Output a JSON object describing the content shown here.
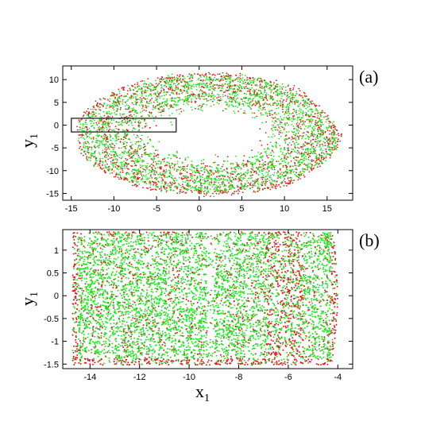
{
  "chart_data": [
    {
      "type": "scatter",
      "panel_label": "(a)",
      "xlabel": "",
      "ylabel_main": "y",
      "ylabel_sub": "1",
      "xlim": [
        -16,
        18
      ],
      "ylim": [
        -16.5,
        13
      ],
      "xticks": [
        -15,
        -10,
        -5,
        0,
        5,
        10,
        15
      ],
      "xtick_labels": [
        "-15",
        "-10",
        "-5",
        "0",
        "5",
        "10",
        "15"
      ],
      "yticks": [
        -15,
        -10,
        -5,
        0,
        5,
        10
      ],
      "ytick_labels": [
        "-15",
        "-10",
        "-5",
        "0",
        "5",
        "10"
      ],
      "series_colors": [
        "#dd1f1f",
        "#22e622"
      ],
      "description_shape": "ring-shaped chaotic attractor, outer radius ~15, inner hole radius ~4-5, centred near (1,-2), cusp at (17.5,-5)",
      "inset_box": {
        "x": [
          -15,
          -2.7
        ],
        "y": [
          -1.5,
          1.5
        ]
      }
    },
    {
      "type": "scatter",
      "panel_label": "(b)",
      "xlabel_main": "x",
      "xlabel_sub": "1",
      "ylabel_main": "y",
      "ylabel_sub": "1",
      "xlim": [
        -15.1,
        -3.4
      ],
      "ylim": [
        -1.6,
        1.45
      ],
      "xticks": [
        -14,
        -12,
        -10,
        -8,
        -6,
        -4
      ],
      "xtick_labels": [
        "-14",
        "-12",
        "-10",
        "-8",
        "-6",
        "-4"
      ],
      "yticks": [
        -1.5,
        -1,
        -0.5,
        0,
        0.5,
        1
      ],
      "ytick_labels": [
        "-1.5",
        "-1",
        "-0.5",
        "0",
        "0.5",
        "1"
      ],
      "series_colors": [
        "#dd1f1f",
        "#22e622"
      ],
      "band_x_range": [
        -14.7,
        -4.0
      ]
    }
  ]
}
